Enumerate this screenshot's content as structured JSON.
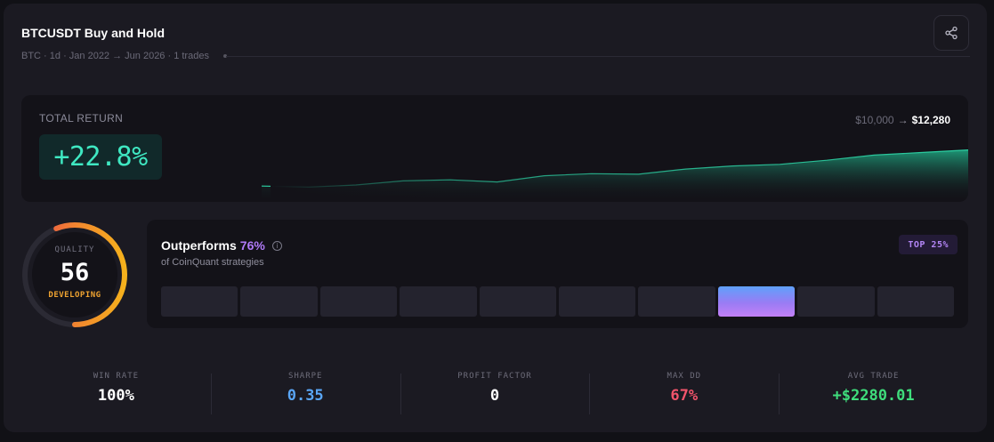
{
  "header": {
    "title": "BTCUSDT Buy and Hold",
    "subtitle": "BTC · 1d · Jan 2022 → Jun 2026 · 1 trades",
    "share_icon": "share-icon"
  },
  "total_return": {
    "label": "TOTAL RETURN",
    "value": "+22.8%",
    "start_value": "$10,000",
    "arrow": "→",
    "end_value": "$12,280",
    "accent_color": "#3fe8c2",
    "equity_curve_relative": [
      0.1,
      0.08,
      0.12,
      0.2,
      0.22,
      0.18,
      0.3,
      0.34,
      0.33,
      0.43,
      0.49,
      0.52,
      0.6,
      0.7,
      0.75,
      0.8
    ]
  },
  "quality": {
    "label": "QUALITY",
    "score": "56",
    "score_fraction": 0.56,
    "status": "DEVELOPING",
    "status_color": "#f0a431"
  },
  "outperform": {
    "title": "Outperforms",
    "percent": "76%",
    "subtitle": "of CoinQuant strategies",
    "badge": "TOP 25%",
    "info_icon": "info-icon",
    "bucket_count": 10,
    "active_bucket_index": 7,
    "accent_color": "#b07af7"
  },
  "stats": [
    {
      "label": "WIN RATE",
      "value": "100%",
      "color": "#ffffff"
    },
    {
      "label": "SHARPE",
      "value": "0.35",
      "color": "#5aa6f6"
    },
    {
      "label": "PROFIT FACTOR",
      "value": "0",
      "color": "#ffffff"
    },
    {
      "label": "MAX DD",
      "value": "67%",
      "color": "#f2546b"
    },
    {
      "label": "AVG TRADE",
      "value": "+$2280.01",
      "color": "#3fdd7c"
    }
  ]
}
